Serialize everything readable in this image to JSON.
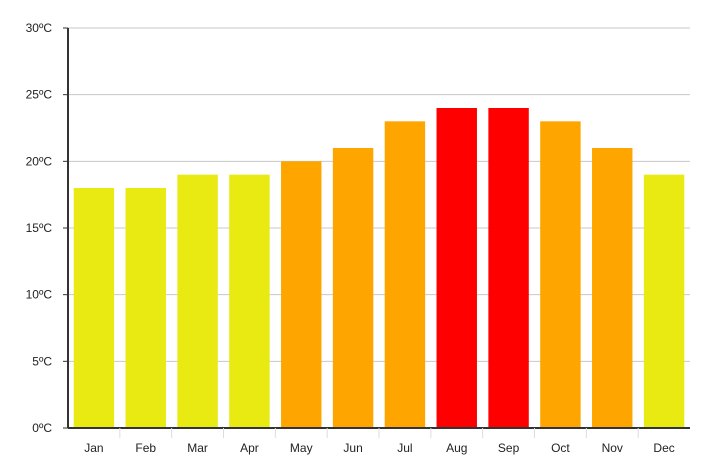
{
  "chart_data": {
    "type": "bar",
    "title": "",
    "xlabel": "",
    "ylabel": "",
    "categories": [
      "Jan",
      "Feb",
      "Mar",
      "Apr",
      "May",
      "Jun",
      "Jul",
      "Aug",
      "Sep",
      "Oct",
      "Nov",
      "Dec"
    ],
    "values": [
      18,
      18,
      19,
      19,
      20,
      21,
      23,
      24,
      24,
      23,
      21,
      19
    ],
    "bar_colors": [
      "#e8ea12",
      "#e8ea12",
      "#e8ea12",
      "#e8ea12",
      "#ffa500",
      "#ffa500",
      "#ffa500",
      "#ff0000",
      "#ff0000",
      "#ffa500",
      "#ffa500",
      "#e8ea12"
    ],
    "ylim": [
      0,
      30
    ],
    "yticks": [
      0,
      5,
      10,
      15,
      20,
      25,
      30
    ],
    "ytick_labels": [
      "0ºC",
      "5ºC",
      "10ºC",
      "15ºC",
      "20ºC",
      "25ºC",
      "30ºC"
    ],
    "grid": true,
    "legend": "none"
  }
}
